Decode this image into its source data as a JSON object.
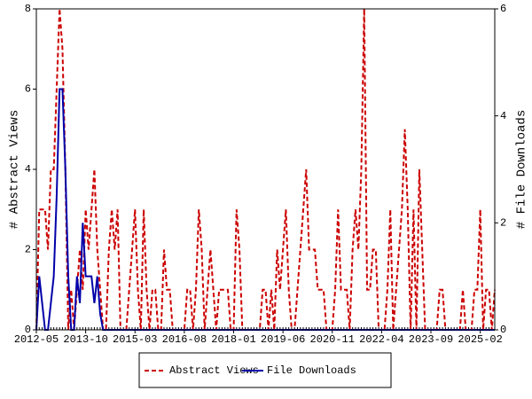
{
  "chart_data": {
    "type": "line",
    "y_label": "# Abstract Views",
    "y2_label": "# File Downloads",
    "categories": [
      "2012-05",
      "2012-06",
      "2012-07",
      "2012-08",
      "2012-09",
      "2012-10",
      "2012-11",
      "2012-12",
      "2013-01",
      "2013-02",
      "2013-03",
      "2013-04",
      "2013-05",
      "2013-06",
      "2013-07",
      "2013-08",
      "2013-09",
      "2013-10",
      "2013-11",
      "2013-12",
      "2014-01",
      "2014-02",
      "2014-03",
      "2014-04",
      "2014-05",
      "2014-06",
      "2014-07",
      "2014-08",
      "2014-09",
      "2014-10",
      "2014-11",
      "2014-12",
      "2015-01",
      "2015-02",
      "2015-03",
      "2015-04",
      "2015-05",
      "2015-06",
      "2015-07",
      "2015-08",
      "2015-09",
      "2015-10",
      "2015-11",
      "2015-12",
      "2016-01",
      "2016-02",
      "2016-03",
      "2016-04",
      "2016-05",
      "2016-06",
      "2016-07",
      "2016-08",
      "2016-09",
      "2016-10",
      "2016-11",
      "2016-12",
      "2017-01",
      "2017-02",
      "2017-03",
      "2017-04",
      "2017-05",
      "2017-06",
      "2017-07",
      "2017-08",
      "2017-09",
      "2017-10",
      "2017-11",
      "2017-12",
      "2018-01",
      "2018-02",
      "2018-03",
      "2018-04",
      "2018-05",
      "2018-06",
      "2018-07",
      "2018-08",
      "2018-09",
      "2018-10",
      "2018-11",
      "2018-12",
      "2019-01",
      "2019-02",
      "2019-03",
      "2019-04",
      "2019-05",
      "2019-06",
      "2019-07",
      "2019-08",
      "2019-09",
      "2019-10",
      "2019-11",
      "2019-12",
      "2020-01",
      "2020-02",
      "2020-03",
      "2020-04",
      "2020-05",
      "2020-06",
      "2020-07",
      "2020-08",
      "2020-09",
      "2020-10",
      "2020-11",
      "2020-12",
      "2021-01",
      "2021-02",
      "2021-03",
      "2021-04",
      "2021-05",
      "2021-06",
      "2021-07",
      "2021-08",
      "2021-09",
      "2021-10",
      "2021-11",
      "2021-12",
      "2022-01",
      "2022-02",
      "2022-03",
      "2022-04",
      "2022-05",
      "2022-06",
      "2022-07",
      "2022-08",
      "2022-09",
      "2022-10",
      "2022-11",
      "2022-12",
      "2023-01",
      "2023-02",
      "2023-03",
      "2023-04",
      "2023-05",
      "2023-06",
      "2023-07",
      "2023-08",
      "2023-09",
      "2023-10",
      "2023-11",
      "2023-12",
      "2024-01",
      "2024-02",
      "2024-03",
      "2024-04",
      "2024-05",
      "2024-06",
      "2024-07",
      "2024-08",
      "2024-09",
      "2024-10",
      "2024-11",
      "2024-12",
      "2025-01",
      "2025-02",
      "2025-03",
      "2025-04",
      "2025-05",
      "2025-06",
      "2025-07"
    ],
    "xticks": [
      "2012-05",
      "2013-10",
      "2015-03",
      "2016-08",
      "2018-01",
      "2019-06",
      "2020-11",
      "2022-04",
      "2023-09",
      "2025-02"
    ],
    "ylim": [
      0,
      8
    ],
    "yticks": [
      0,
      2,
      4,
      6,
      8
    ],
    "y2lim": [
      0,
      6
    ],
    "y2ticks": [
      0,
      2,
      4,
      6
    ],
    "legend": "bottom",
    "series": [
      {
        "name": "Abstract Views",
        "color": "#cc0000",
        "dash": true,
        "values": [
          0,
          3,
          3,
          3,
          2,
          4,
          4,
          6,
          8,
          7,
          4,
          0,
          1,
          0,
          1,
          2,
          1,
          3,
          2,
          3,
          4,
          2,
          1,
          0,
          0,
          2,
          3,
          2,
          3,
          0,
          0,
          0,
          1,
          2,
          3,
          1,
          0,
          3,
          1,
          0,
          1,
          1,
          0,
          0,
          2,
          1,
          1,
          0,
          0,
          0,
          0,
          0,
          1,
          1,
          0,
          1,
          3,
          2,
          0,
          1,
          2,
          1,
          0,
          1,
          1,
          1,
          1,
          0,
          0,
          3,
          2,
          0,
          0,
          0,
          0,
          0,
          0,
          0,
          1,
          1,
          0,
          1,
          0,
          2,
          1,
          2,
          3,
          1,
          0,
          0,
          1,
          2,
          3,
          4,
          2,
          2,
          2,
          1,
          1,
          1,
          0,
          0,
          0,
          1,
          3,
          1,
          1,
          1,
          0,
          2,
          3,
          2,
          4,
          8,
          1,
          1,
          2,
          2,
          0,
          0,
          0,
          1,
          3,
          0,
          1,
          2,
          3,
          5,
          3,
          0,
          3,
          0,
          4,
          2,
          0,
          0,
          0,
          0,
          0,
          1,
          1,
          0,
          0,
          0,
          0,
          0,
          0,
          1,
          0,
          0,
          0,
          1,
          1,
          3,
          0,
          1,
          1,
          0,
          1
        ]
      },
      {
        "name": "File Downloads",
        "color": "#0000aa",
        "dash": false,
        "axis": "y2",
        "values": [
          0,
          1,
          0.5,
          0,
          0,
          0.5,
          1,
          2.5,
          4.5,
          4.5,
          3,
          1,
          0,
          0,
          1,
          0.5,
          2,
          1,
          1,
          1,
          0.5,
          1,
          0.3,
          0,
          0,
          0,
          0,
          0,
          0,
          0,
          0,
          0,
          0,
          0,
          0,
          0,
          0,
          0,
          0,
          0,
          0,
          0,
          0,
          0,
          0,
          0,
          0,
          0,
          0,
          0,
          0,
          0,
          0,
          0,
          0,
          0,
          0,
          0,
          0,
          0,
          0,
          0,
          0,
          0,
          0,
          0,
          0,
          0,
          0,
          0,
          0,
          0,
          0,
          0,
          0,
          0,
          0,
          0,
          0,
          0,
          0,
          0,
          0,
          0,
          0,
          0,
          0,
          0,
          0,
          0,
          0,
          0,
          0,
          0,
          0,
          0,
          0,
          0,
          0,
          0,
          0,
          0,
          0,
          0,
          0,
          0,
          0,
          0,
          0,
          0,
          0,
          0,
          0,
          0,
          0,
          0,
          0,
          0,
          0,
          0,
          0,
          0,
          0,
          0,
          0,
          0,
          0,
          0,
          0,
          0,
          0,
          0,
          0,
          0,
          0,
          0,
          0,
          0,
          0,
          0,
          0,
          0,
          0,
          0,
          0,
          0,
          0,
          0,
          0,
          0,
          0,
          0,
          0,
          0,
          0,
          0,
          0,
          0,
          0
        ]
      }
    ]
  }
}
